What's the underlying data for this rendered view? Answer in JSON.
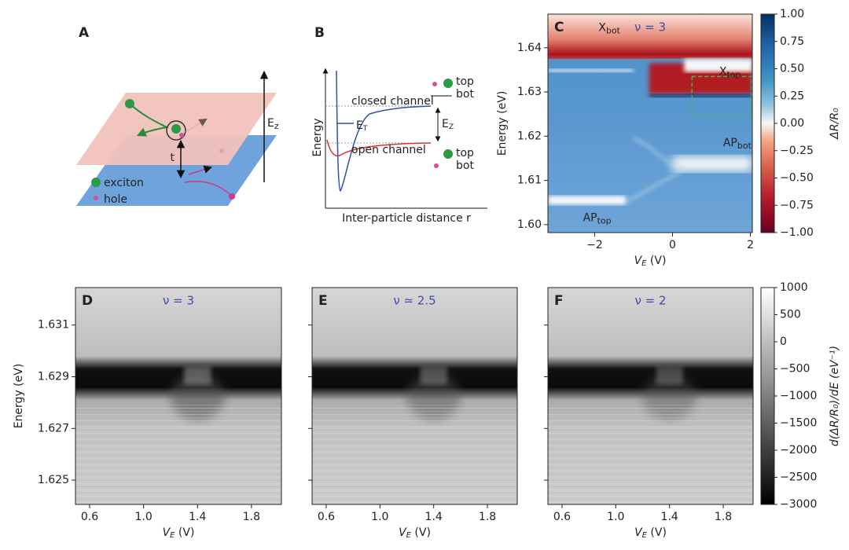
{
  "diagram_a": {
    "label": "A",
    "exciton": "exciton",
    "hole": "hole",
    "t": "t",
    "field": "E",
    "field_sub": "z"
  },
  "diagram_b": {
    "label": "B",
    "ylabel": "Energy",
    "xlabel": "Inter-particle distance r",
    "closed": "closed channel",
    "open": "open channel",
    "et": "E",
    "et_sub": "T",
    "ez": "E",
    "ez_sub": "Z",
    "top": "top",
    "bot": "bot"
  },
  "chart_data": [
    {
      "type": "heatmap",
      "label": "C",
      "title": "ν = 3",
      "colormap": "RdBu",
      "xlabel": {
        "var": "V",
        "sub": "E",
        "unit": " (V)"
      },
      "ylabel": "Energy (eV)",
      "xlim": [
        -3.2,
        2.05
      ],
      "xticks": [
        {
          "value": -2,
          "label": "−2"
        },
        0,
        2
      ],
      "ylim": [
        1.5982,
        1.6476
      ],
      "yticks": [
        {
          "value": 1.6,
          "label": "1.60"
        },
        1.61,
        1.62,
        1.63,
        1.64
      ],
      "annotations": [
        {
          "text": "X",
          "sub": "bot"
        },
        {
          "text": "X",
          "sub": "top"
        },
        {
          "text": "AP",
          "sub": "bot"
        },
        {
          "text": "AP",
          "sub": "top"
        }
      ],
      "colorbar": {
        "label": "ΔR/R₀",
        "lim": [
          -1,
          1
        ],
        "ticks": [
          {
            "value": 1,
            "label": "1.00"
          },
          {
            "value": 0.75,
            "label": "0.75"
          },
          {
            "value": 0.5,
            "label": "0.50"
          },
          {
            "value": 0.25,
            "label": "0.25"
          },
          {
            "value": 0,
            "label": "0.00"
          },
          {
            "value": -0.25,
            "label": "−0.25"
          },
          {
            "value": -0.5,
            "label": "−0.50"
          },
          {
            "value": -0.75,
            "label": "−0.75"
          },
          {
            "value": -1,
            "label": "−1.00"
          }
        ]
      }
    },
    {
      "type": "heatmap",
      "label": "D",
      "title": "ν = 3",
      "colormap": "gray",
      "xlabel": {
        "var": "V",
        "sub": "E",
        "unit": " (V)"
      },
      "ylabel": "Energy (eV)",
      "xlim": [
        0.495,
        2.022
      ],
      "xticks": [
        0.6,
        {
          "value": 1,
          "label": "1.0"
        },
        1.4,
        1.8
      ],
      "ylim": [
        1.62406,
        1.63245
      ],
      "yticks": [
        1.631,
        1.629,
        1.627,
        1.625
      ]
    },
    {
      "type": "heatmap",
      "label": "E",
      "title": "ν ≃ 2.5",
      "colormap": "gray",
      "xlabel": {
        "var": "V",
        "sub": "E",
        "unit": " (V)"
      },
      "xlim": [
        0.495,
        2.022
      ],
      "xticks": [
        0.6,
        {
          "value": 1,
          "label": "1.0"
        },
        1.4,
        1.8
      ],
      "ylim": [
        1.62406,
        1.63245
      ],
      "yticks": [
        1.631,
        1.629,
        1.627,
        1.625
      ]
    },
    {
      "type": "heatmap",
      "label": "F",
      "title": "ν = 2",
      "colormap": "gray",
      "xlabel": {
        "var": "V",
        "sub": "E",
        "unit": " (V)"
      },
      "xlim": [
        0.495,
        2.022
      ],
      "xticks": [
        0.6,
        {
          "value": 1,
          "label": "1.0"
        },
        1.4,
        1.8
      ],
      "ylim": [
        1.62406,
        1.63245
      ],
      "yticks": [
        1.631,
        1.629,
        1.627,
        1.625
      ],
      "colorbar": {
        "label": "d(ΔR/R₀)/dE (eV⁻¹)",
        "lim": [
          -3000,
          1000
        ],
        "ticks": [
          1000,
          500,
          0,
          {
            "value": -500,
            "label": "−500"
          },
          {
            "value": -1000,
            "label": "−1000"
          },
          {
            "value": -1500,
            "label": "−1500"
          },
          {
            "value": -2000,
            "label": "−2000"
          },
          {
            "value": -2500,
            "label": "−2500"
          },
          {
            "value": -3000,
            "label": "−3000"
          }
        ]
      }
    }
  ]
}
